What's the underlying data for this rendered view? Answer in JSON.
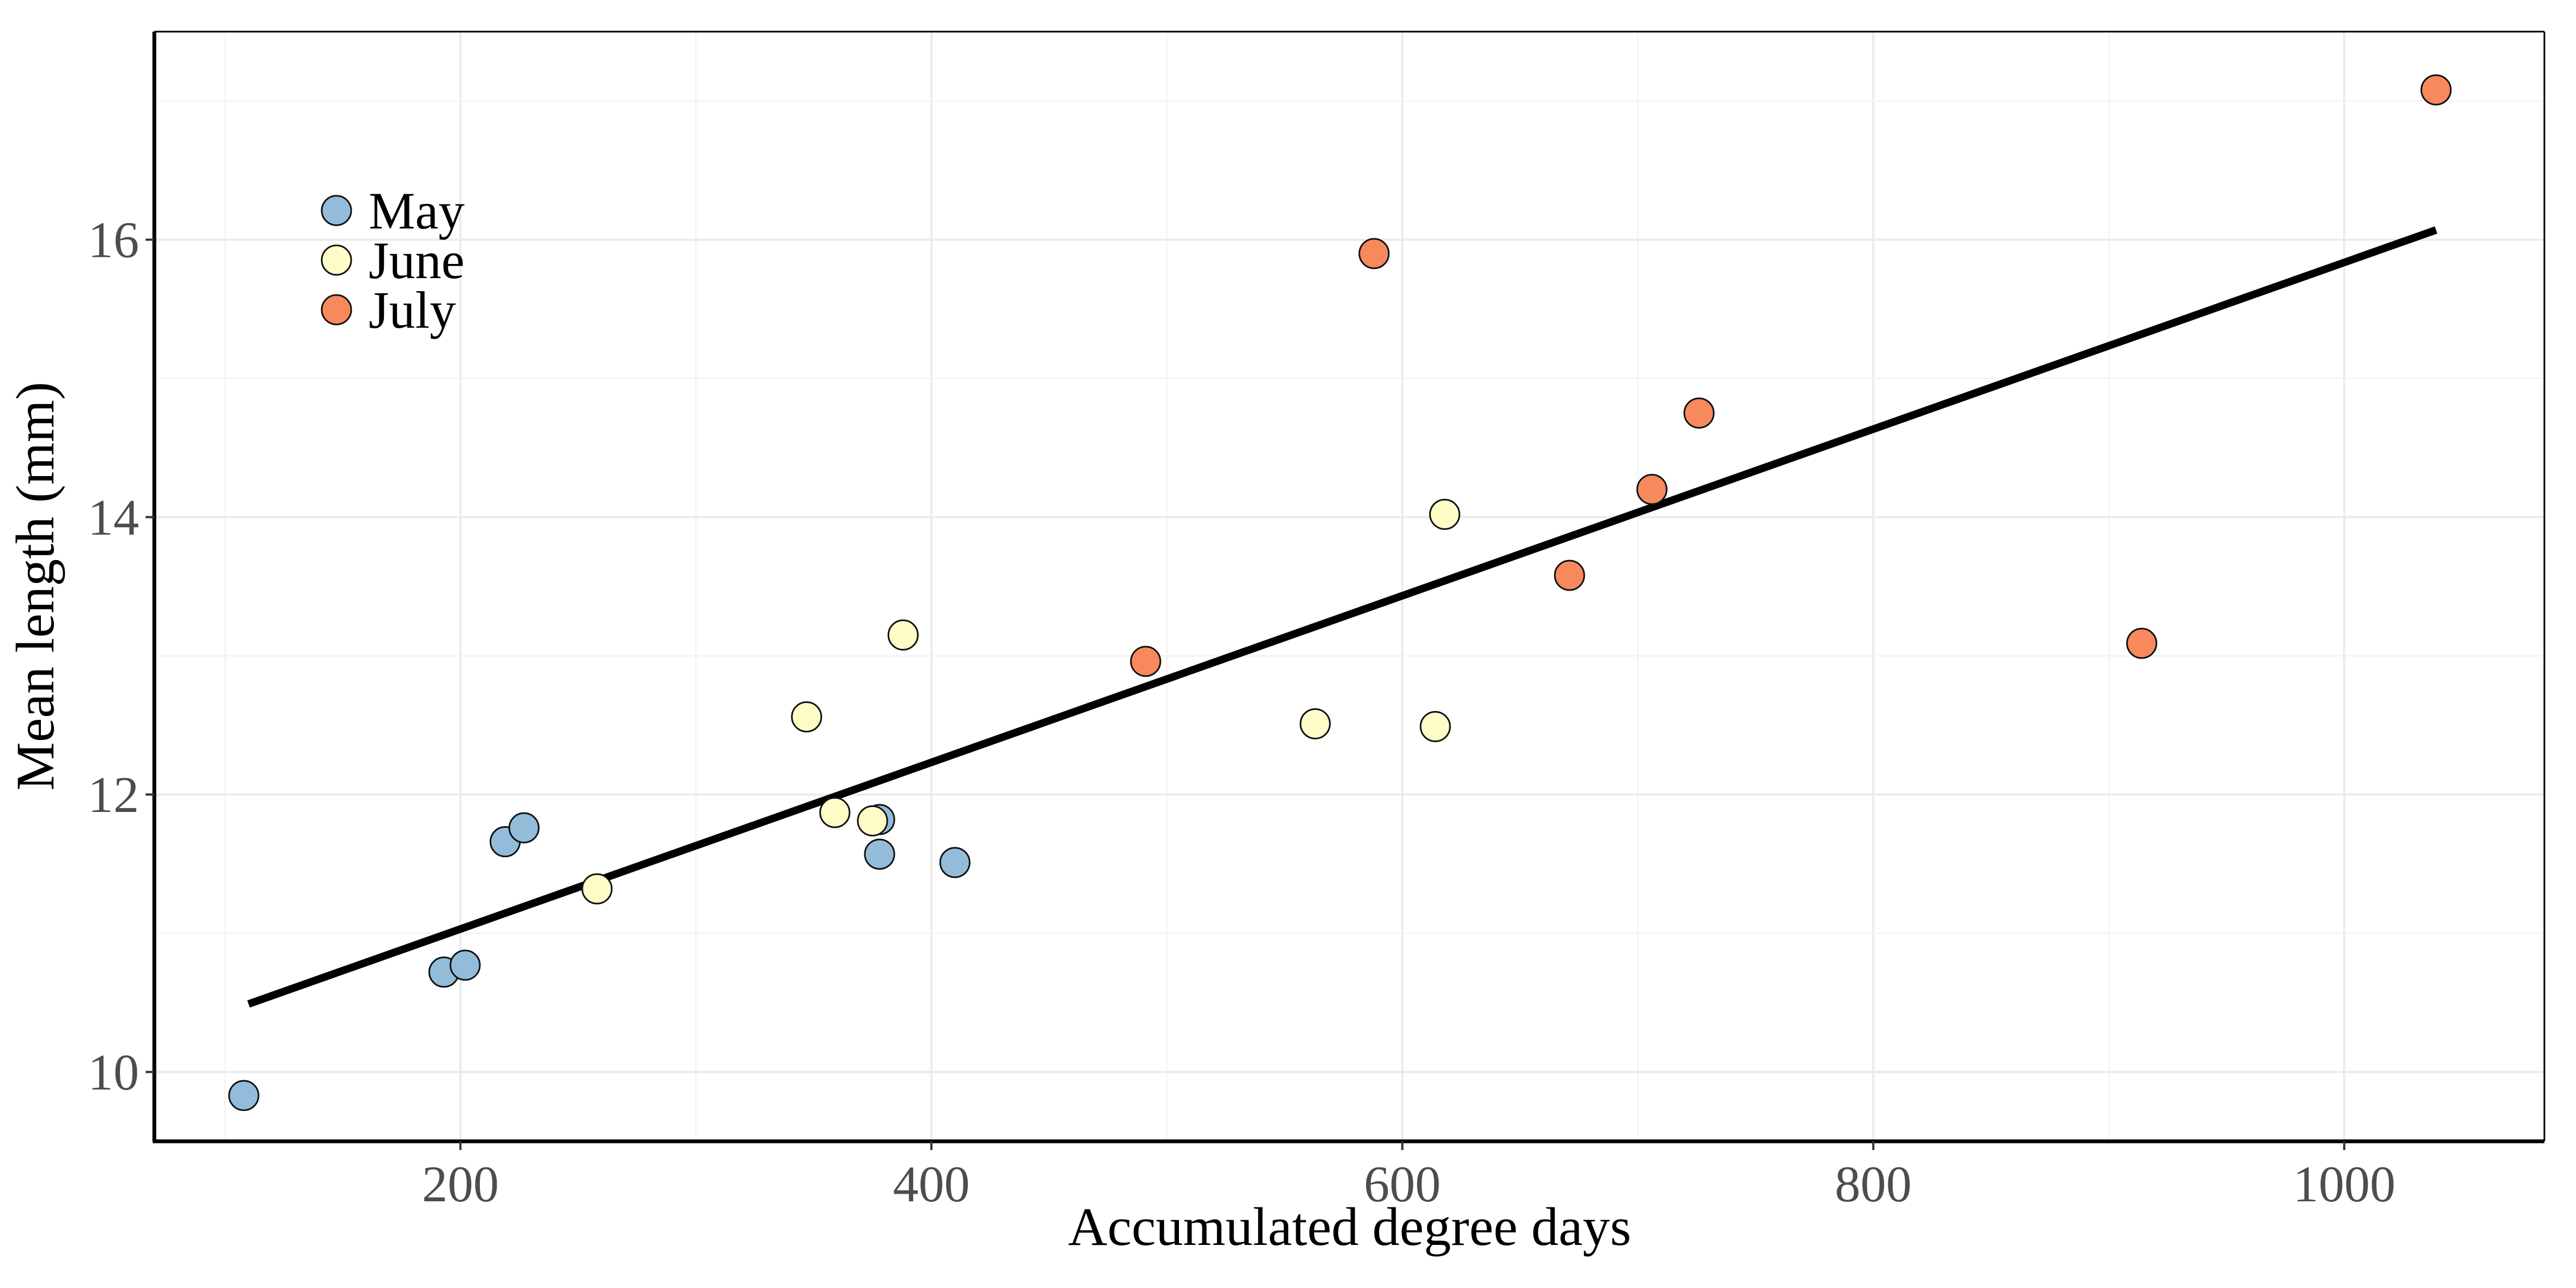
{
  "chart_data": {
    "type": "scatter",
    "title": "",
    "xlabel": "Accumulated degree days",
    "ylabel": "Mean length (mm)",
    "xlim": [
      70,
      1085
    ],
    "ylim": [
      9.5,
      17.5
    ],
    "x_ticks": [
      200,
      400,
      600,
      800,
      1000
    ],
    "y_ticks": [
      10,
      12,
      14,
      16
    ],
    "x_tick_labels": [
      "200",
      "400",
      "600",
      "800",
      "1000"
    ],
    "y_tick_labels": [
      "10",
      "12",
      "14",
      "16"
    ],
    "grid": true,
    "legend": {
      "placement": "top-left",
      "entries": [
        "May",
        "June",
        "July"
      ]
    },
    "series": [
      {
        "name": "May",
        "color": "#92bcd9",
        "points": [
          {
            "x": 108,
            "y": 9.83
          },
          {
            "x": 193,
            "y": 10.72
          },
          {
            "x": 202,
            "y": 10.77
          },
          {
            "x": 219,
            "y": 11.66
          },
          {
            "x": 227,
            "y": 11.76
          },
          {
            "x": 378,
            "y": 11.82
          },
          {
            "x": 378,
            "y": 11.57
          },
          {
            "x": 410,
            "y": 11.51
          }
        ]
      },
      {
        "name": "June",
        "color": "#fefdc8",
        "points": [
          {
            "x": 258,
            "y": 11.32
          },
          {
            "x": 347,
            "y": 12.56
          },
          {
            "x": 359,
            "y": 11.87
          },
          {
            "x": 375,
            "y": 11.81
          },
          {
            "x": 388,
            "y": 13.15
          },
          {
            "x": 563,
            "y": 12.51
          },
          {
            "x": 614,
            "y": 12.49
          },
          {
            "x": 618,
            "y": 14.02
          }
        ]
      },
      {
        "name": "July",
        "color": "#f7895c",
        "points": [
          {
            "x": 491,
            "y": 12.96
          },
          {
            "x": 588,
            "y": 15.9
          },
          {
            "x": 671,
            "y": 13.58
          },
          {
            "x": 706,
            "y": 14.2
          },
          {
            "x": 726,
            "y": 14.75
          },
          {
            "x": 914,
            "y": 13.09
          },
          {
            "x": 1039,
            "y": 17.08
          }
        ]
      }
    ],
    "trend_line": {
      "color": "#000000",
      "from": {
        "x": 110,
        "y": 10.49
      },
      "to": {
        "x": 1039,
        "y": 16.07
      }
    }
  }
}
